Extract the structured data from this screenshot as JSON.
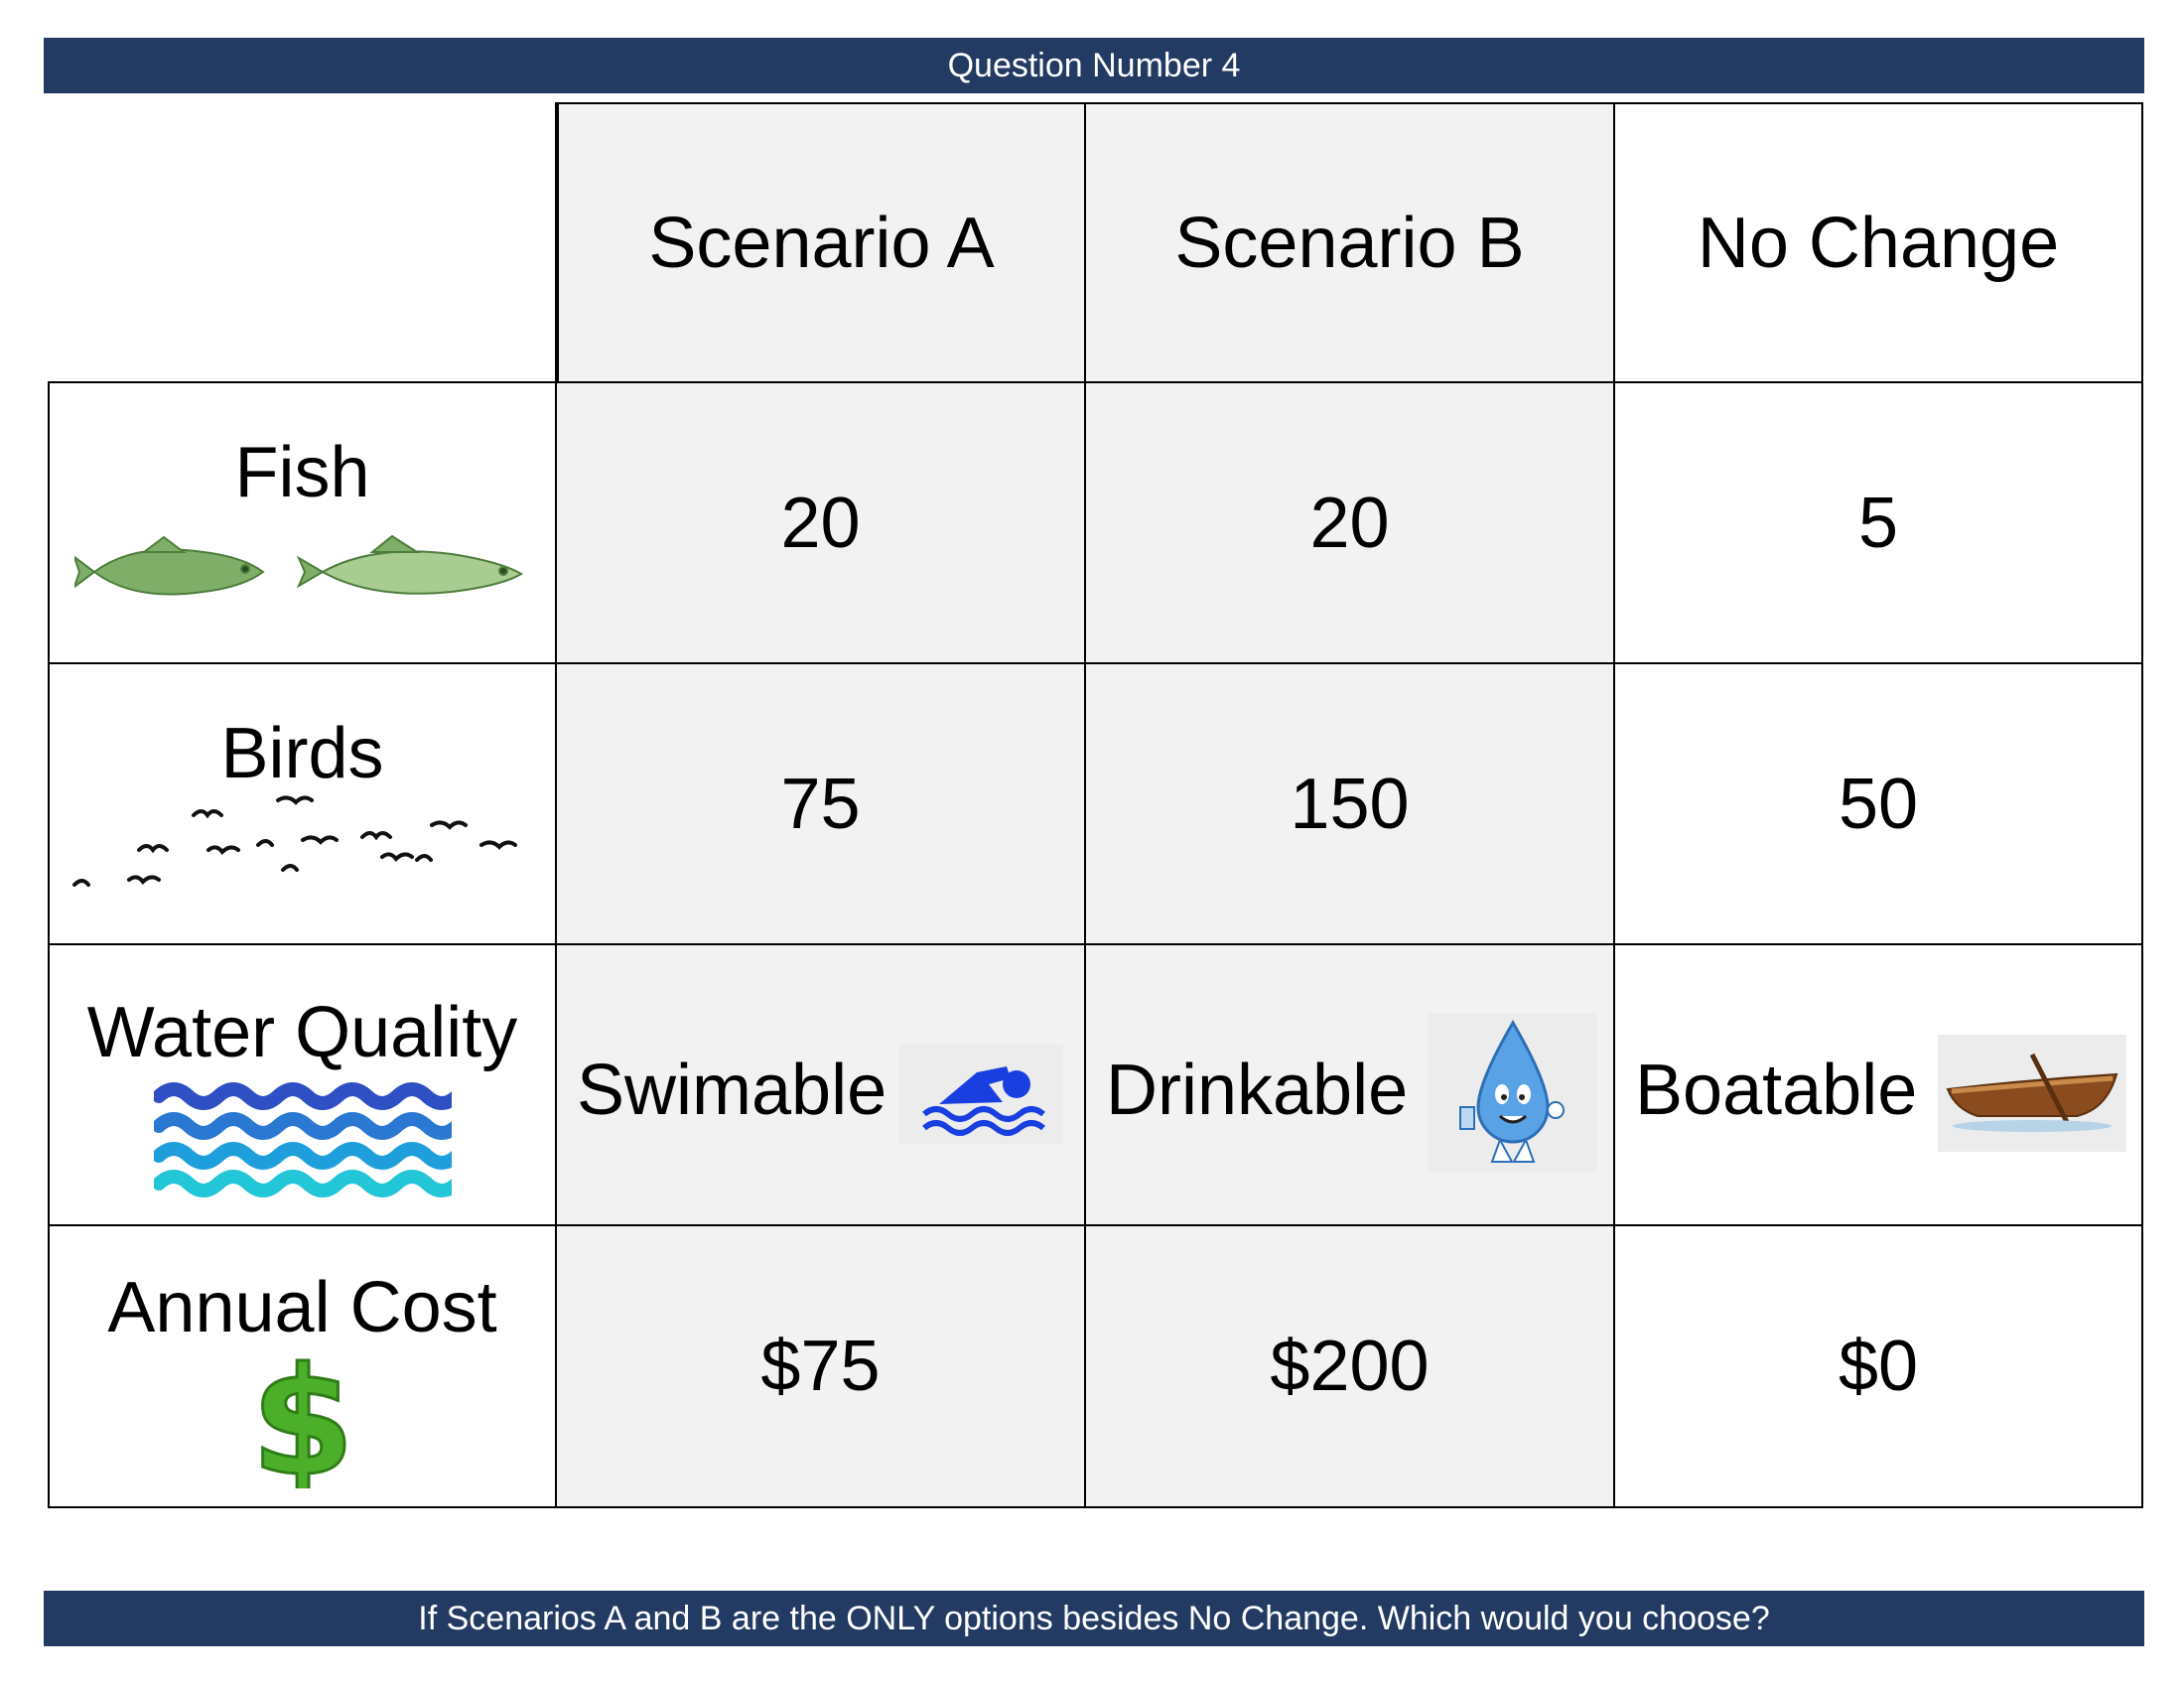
{
  "header": {
    "title": "Question Number 4"
  },
  "columns": [
    {
      "label": "Scenario A"
    },
    {
      "label": "Scenario B"
    },
    {
      "label": "No Change"
    }
  ],
  "rows": {
    "fish": {
      "label": "Fish",
      "icon": "fish-icon",
      "values": [
        "20",
        "20",
        "5"
      ]
    },
    "birds": {
      "label": "Birds",
      "icon": "birds-icon",
      "values": [
        "75",
        "150",
        "50"
      ]
    },
    "water_quality": {
      "label": "Water Quality",
      "icon": "water-waves-icon",
      "values": [
        {
          "text": "Swimable",
          "icon": "swimmer-icon"
        },
        {
          "text": "Drinkable",
          "icon": "water-drop-mascot-icon"
        },
        {
          "text": "Boatable",
          "icon": "rowboat-icon"
        }
      ]
    },
    "annual_cost": {
      "label": "Annual Cost",
      "icon": "dollar-sign-icon",
      "values": [
        "$75",
        "$200",
        "$0"
      ]
    }
  },
  "footer": {
    "question": "If Scenarios A and B are the ONLY options besides No Change. Which would you choose?"
  },
  "colors": {
    "banner": "#233a62",
    "cell_gray": "#f2f2f2",
    "fish_green": "#6f9e5a",
    "dollar_green": "#4caf2a",
    "swimmer_blue": "#1a3fe0",
    "drop_blue": "#5aa2e6",
    "boat_brown": "#8a4b1e"
  }
}
